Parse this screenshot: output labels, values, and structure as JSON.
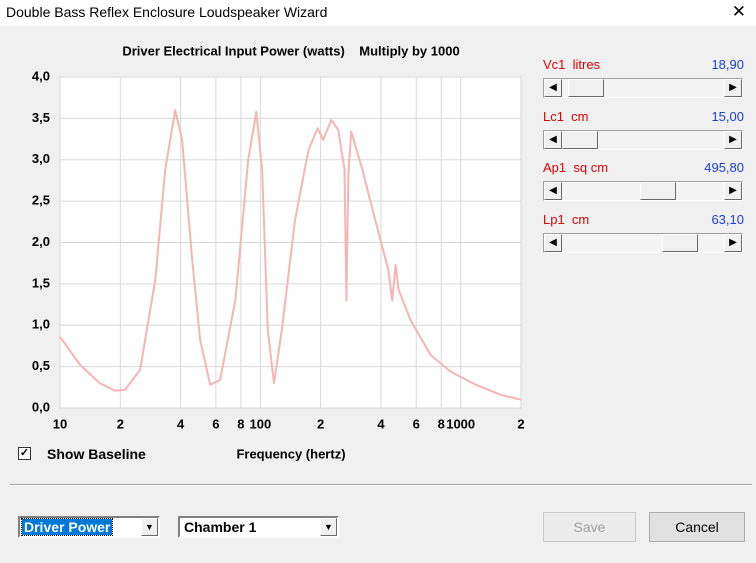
{
  "window": {
    "title": "Double Bass Reflex Enclosure Loudspeaker Wizard"
  },
  "chart_data": {
    "type": "line",
    "title": "Driver Electrical Input Power (watts)    Multiply by 1000",
    "x_label": "Frequency (hertz)",
    "x": [
      10,
      12.6,
      15.8,
      18.8,
      21.1,
      25.1,
      29.9,
      33.5,
      37.6,
      40.7,
      45.7,
      50.1,
      56.2,
      63,
      75,
      87,
      95.5,
      102,
      109,
      117,
      128,
      149,
      174,
      193,
      206,
      226,
      245,
      263,
      269,
      275,
      284,
      323,
      375,
      435,
      455,
      473,
      490,
      562,
      708,
      891,
      1189,
      1585,
      2000
    ],
    "series": [
      {
        "color": "#f5b5b5",
        "values": [
          0.86,
          0.52,
          0.3,
          0.21,
          0.22,
          0.46,
          1.55,
          2.88,
          3.6,
          3.24,
          1.79,
          0.82,
          0.28,
          0.34,
          1.3,
          3.0,
          3.58,
          2.88,
          0.94,
          0.3,
          0.94,
          2.27,
          3.12,
          3.38,
          3.24,
          3.48,
          3.36,
          2.88,
          1.3,
          2.82,
          3.34,
          2.88,
          2.27,
          1.67,
          1.3,
          1.73,
          1.43,
          1.06,
          0.64,
          0.44,
          0.28,
          0.16,
          0.1
        ]
      }
    ],
    "x_scale": "log",
    "xlim": [
      10,
      2000
    ],
    "xticks": [
      10,
      {
        "value": 20,
        "label": "2"
      },
      {
        "value": 40,
        "label": "4"
      },
      {
        "value": 60,
        "label": "6"
      },
      {
        "value": 80,
        "label": "8"
      },
      100,
      {
        "value": 200,
        "label": "2"
      },
      {
        "value": 400,
        "label": "4"
      },
      {
        "value": 600,
        "label": "6"
      },
      {
        "value": 800,
        "label": "8"
      },
      1000,
      {
        "value": 2000,
        "label": "2"
      }
    ],
    "ylim": [
      0,
      4
    ],
    "yticks": [
      {
        "value": 0,
        "label": "0,0"
      },
      {
        "value": 0.5,
        "label": "0,5"
      },
      {
        "value": 1,
        "label": "1,0"
      },
      {
        "value": 1.5,
        "label": "1,5"
      },
      {
        "value": 2,
        "label": "2,0"
      },
      {
        "value": 2.5,
        "label": "2,5"
      },
      {
        "value": 3,
        "label": "3,0"
      },
      {
        "value": 3.5,
        "label": "3,5"
      },
      {
        "value": 4,
        "label": "4,0"
      }
    ],
    "grid": true
  },
  "controls": {
    "sliders": [
      {
        "label": "Vc1  litres",
        "value": "18,90"
      },
      {
        "label": "Lc1  cm",
        "value": "15,00"
      },
      {
        "label": "Ap1  sq cm",
        "value": "495,80"
      },
      {
        "label": "Lp1  cm",
        "value": "63,10"
      }
    ],
    "show_baseline": "Show Baseline",
    "plot_select": "Driver Power",
    "chamber_select": "Chamber 1",
    "save": "Save",
    "cancel": "Cancel"
  }
}
